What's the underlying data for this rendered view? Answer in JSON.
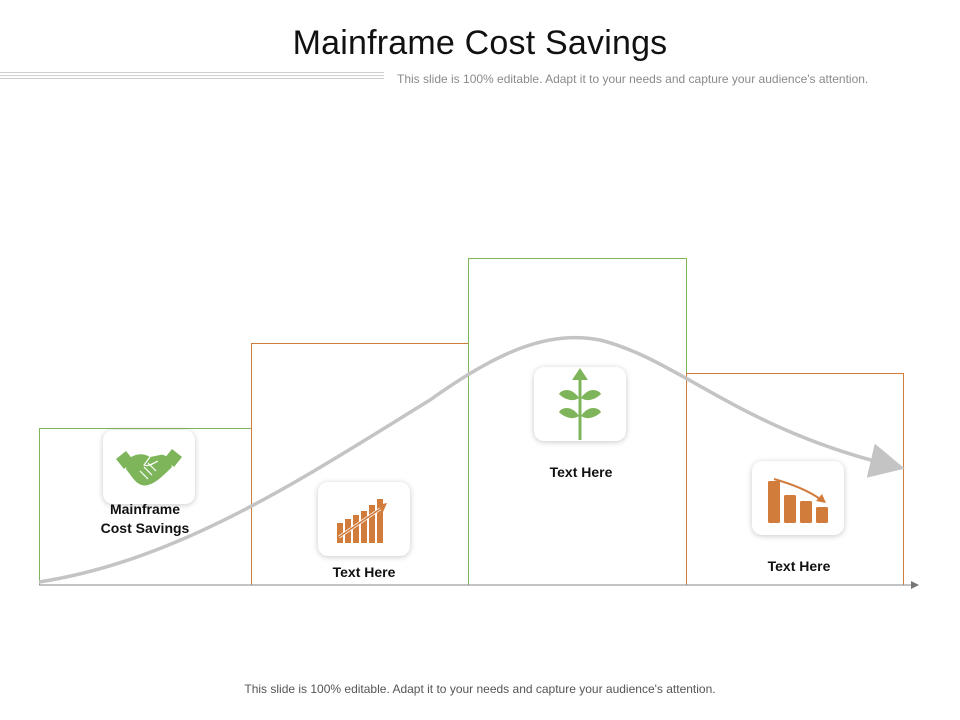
{
  "header": {
    "title": "Mainframe Cost Savings",
    "subtitle": "This slide is 100% editable. Adapt it to your needs and capture your audience's attention."
  },
  "steps": [
    {
      "label_line1": "Mainframe",
      "label_line2": "Cost Savings",
      "icon": "handshake-icon",
      "color": "#7fb55a"
    },
    {
      "label": "Text Here",
      "icon": "bar-chart-growth-icon",
      "color": "#d27c3c"
    },
    {
      "label": "Text Here",
      "icon": "plant-growth-icon",
      "color": "#7fb55a"
    },
    {
      "label": "Text Here",
      "icon": "bar-chart-decline-icon",
      "color": "#d27c3c"
    }
  ],
  "footer": {
    "text": "This slide is 100% editable. Adapt it to your needs and capture your audience's attention."
  },
  "colors": {
    "green": "#7fb55a",
    "orange": "#d27c3c",
    "curve": "#c4c4c4"
  }
}
